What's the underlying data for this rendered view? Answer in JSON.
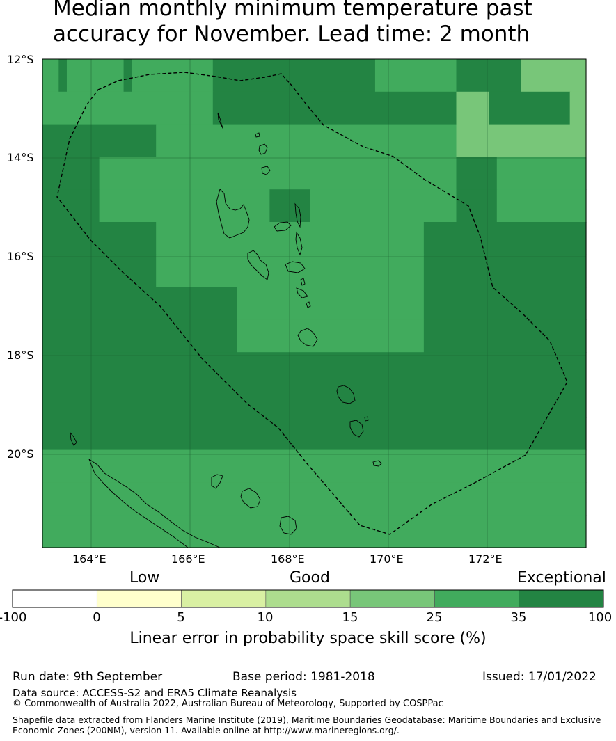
{
  "title": {
    "line1": "Median monthly minimum temperature past",
    "line2": "accuracy for November. Lead time: 2 month"
  },
  "map": {
    "lat_labels": [
      "12°S",
      "14°S",
      "16°S",
      "18°S",
      "20°S"
    ],
    "lon_labels": [
      "164°E",
      "166°E",
      "168°E",
      "170°E",
      "172°E"
    ],
    "colors": {
      "c0": "#ffffff",
      "c5": "#ffffcc",
      "c10": "#d9f0a3",
      "c15": "#addd8e",
      "c25": "#78c679",
      "c35": "#41ab5d",
      "c100": "#238443"
    },
    "rows": [
      "GGMGGGGGGGMGGGGGGGGGGMMMMMMMMMMMMMMMMMMMMGGGGGGGGGGMMMMMMMMLLLLLLLL",
      "GGGGGGGGGGGGGGGGGGGGGMMMMMMMMMMMMMMMMMMMMMMMMMMMMMMLLLLMMMMMMMMMMLL",
      "MMMMMMMMMMMMMMGGGGGGGGGGGGGGGGGGGGGGGGGGGGGGGGGGGGGLLLLLLLLLLLLLLLL",
      "MMMMMMMGGGGGGGGGGGGGGGGGGGGGGGGGGGGGGGGGGGGGGGGGGGGMMMMMGGGGGGGGGGG",
      "MMMMMMMGGGGGGGGGGGGGGGGGGGGGMMMMMGGGGGGGGGGGGGGGGGGMMMMMGGGGGGGGGGG",
      "MMMMMMMMMMMMMMGGGGGGGGGGGGGGGGGGGGGGGGGGGGGGGGGMMMMMMMMMMMMMMMMMMMM",
      "MMMMMMMMMMMMMMGGGGGGGGGGGGGGGGGGGGGGGGGGGGGGGGGMMMMMMMMMMMMMMMMMMMM",
      "MMMMMMMMMMMMMMMMMMMMMMMMGGGGGGGGGGGGGGGGGGGGGGGMMMMMMMMMMMMMMMMMMMM",
      "MMMMMMMMMMMMMMMMMMMMMMMMGGGGGGGGGGGGGGGGGGGGGGGMMMMMMMMMMMMMMMMMMMM",
      "MMMMMMMMMMMMMMMMMMMMMMMMMMMMMMMMMMMMMMMMMMMMMMMMMMMMMMMMMMMMMMMMMMM",
      "MMMMMMMMMMMMMMMMMMMMMMMMMMMMMMMMMMMMMMMMMMMMMMMMMMMMMMMMMMMMMMMMMMM",
      "MMMMMMMMMMMMMMMMMMMMMMMMMMMMMMMMMMMMMMMMMMMMMMMMMMMMMMMMMMMMMMMMMMM",
      "GGGGGGGGGGGGGGGGGGGGGGGGGGGGGGGGGGGGGGGGGGGGGGGGGGGGGGGGGGGGGGGGGGG",
      "GGGGGGGGGGGGGGGGGGGGGGGGGGGGGGGGGGGGGGGGGGGGGGGGGGGGGGGGGGGGGGGGGGG",
      "GGGGGGGGGGGGGGGGGGGGGGGGGGGGGGGGGGGGGGGGGGGGGGGGGGGGGGGGGGGGGGGGGGG"
    ]
  },
  "colorbar": {
    "headings": {
      "low": "Low",
      "good": "Good",
      "exceptional": "Exceptional"
    },
    "ticks": [
      "-100",
      "0",
      "5",
      "10",
      "15",
      "25",
      "35",
      "100"
    ],
    "bins": [
      {
        "from": "-100",
        "to": "0",
        "color": "#ffffff"
      },
      {
        "from": "0",
        "to": "5",
        "color": "#ffffcc"
      },
      {
        "from": "5",
        "to": "10",
        "color": "#d9f0a3"
      },
      {
        "from": "10",
        "to": "15",
        "color": "#addd8e"
      },
      {
        "from": "15",
        "to": "25",
        "color": "#78c679"
      },
      {
        "from": "25",
        "to": "35",
        "color": "#41ab5d"
      },
      {
        "from": "35",
        "to": "100",
        "color": "#238443"
      }
    ],
    "title": "Linear error in probability space skill score (%)"
  },
  "footer": {
    "run_date": "Run date: 9th September",
    "base_period": "Base period: 1981-2018",
    "issued": "Issued: 17/01/2022",
    "data_source": "Data source: ACCESS-S2 and ERA5 Climate Reanalysis",
    "copyright": "© Commonwealth of Australia 2022, Australian Bureau of Meteorology, Supported by COSPPac",
    "shapefile_line1": "Shapefile data extracted from Flanders Marine Institute (2019), Maritime Boundaries Geodatabase: Maritime Boundaries and Exclusive",
    "shapefile_line2": "Economic Zones (200NM), version 11. Available online at http://www.marineregions.org/."
  }
}
